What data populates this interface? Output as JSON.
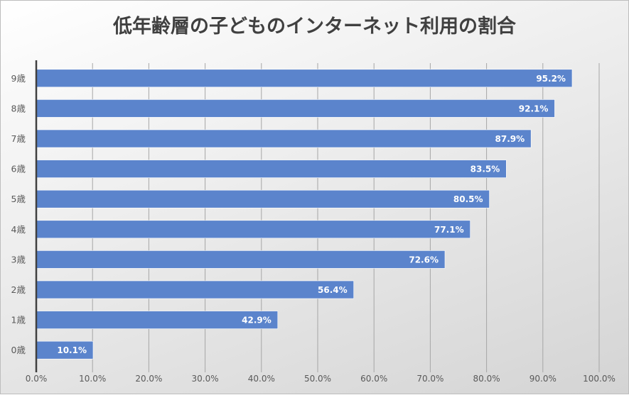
{
  "chart_data": {
    "type": "bar",
    "orientation": "horizontal",
    "title": "低年齢層の子どものインターネット利用の割合",
    "categories": [
      "9歳",
      "8歳",
      "7歳",
      "6歳",
      "5歳",
      "4歳",
      "3歳",
      "2歳",
      "1歳",
      "0歳"
    ],
    "values": [
      95.2,
      92.1,
      87.9,
      83.5,
      80.5,
      77.1,
      72.6,
      56.4,
      42.9,
      10.1
    ],
    "data_labels": [
      "95.2%",
      "92.1%",
      "87.9%",
      "83.5%",
      "80.5%",
      "77.1%",
      "72.6%",
      "56.4%",
      "42.9%",
      "10.1%"
    ],
    "xlabel": "",
    "ylabel": "",
    "xlim": [
      0,
      100
    ],
    "x_ticks": [
      "0.0%",
      "10.0%",
      "20.0%",
      "30.0%",
      "40.0%",
      "50.0%",
      "60.0%",
      "70.0%",
      "80.0%",
      "90.0%",
      "100.0%"
    ],
    "grid": true,
    "legend": "none",
    "bar_color": "#5b84cc"
  }
}
